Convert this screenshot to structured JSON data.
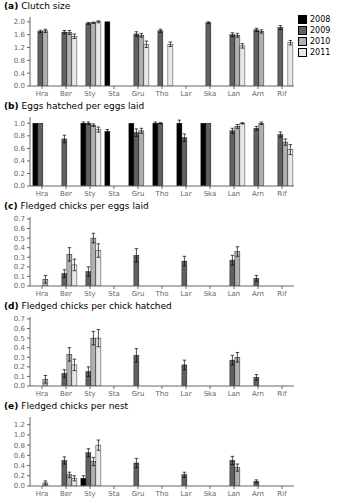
{
  "chart_data": [
    {
      "type": "bar",
      "title": "(a)",
      "ylabel": "Clutch size",
      "categories": [
        "Hra",
        "Ber",
        "Sty",
        "Sta",
        "Gru",
        "Tho",
        "Lar",
        "Ska",
        "Lan",
        "Arn",
        "Rif"
      ],
      "series": [
        {
          "name": "2008",
          "color": "#000000",
          "values": [
            null,
            null,
            null,
            2.0,
            null,
            null,
            null,
            null,
            null,
            null,
            null
          ],
          "errors": [
            null,
            null,
            null,
            null,
            null,
            null,
            null,
            null,
            null,
            null,
            null
          ]
        },
        {
          "name": "2009",
          "color": "#606060",
          "values": [
            1.7,
            1.68,
            1.95,
            null,
            1.62,
            1.72,
            null,
            1.97,
            1.6,
            1.75,
            1.82
          ],
          "errors": [
            0.04,
            0.05,
            0.03,
            null,
            0.07,
            0.05,
            null,
            0.03,
            0.06,
            0.05,
            0.06
          ]
        },
        {
          "name": "2010",
          "color": "#b0b0b0",
          "values": [
            1.72,
            1.67,
            1.97,
            null,
            1.58,
            null,
            null,
            null,
            1.58,
            1.7,
            null
          ],
          "errors": [
            0.05,
            0.06,
            0.02,
            null,
            0.06,
            null,
            null,
            null,
            0.06,
            0.05,
            null
          ]
        },
        {
          "name": "2011",
          "color": "#e8e8e8",
          "values": [
            null,
            1.55,
            2.0,
            null,
            1.3,
            1.3,
            null,
            null,
            1.25,
            null,
            1.35
          ],
          "errors": [
            null,
            0.07,
            0.03,
            null,
            0.1,
            0.07,
            null,
            null,
            0.07,
            null,
            0.07
          ]
        }
      ],
      "ylim": [
        0.0,
        2.15
      ],
      "yticks": [
        {
          "value": 0,
          "label": "0.0"
        },
        0.4,
        0.8,
        1.2,
        1.6,
        {
          "value": 2,
          "label": "2.0"
        }
      ],
      "legend": "upper right"
    },
    {
      "type": "bar",
      "title": "(b)",
      "ylabel": "Eggs hatched per eggs laid",
      "categories": [
        "Hra",
        "Ber",
        "Sty",
        "Sta",
        "Gru",
        "Tho",
        "Lar",
        "Ska",
        "Lan",
        "Arn",
        "Rif"
      ],
      "series": [
        {
          "name": "2008",
          "color": "#000000",
          "values": [
            1.0,
            null,
            1.0,
            0.87,
            1.0,
            1.0,
            1.0,
            1.0,
            null,
            null,
            null
          ],
          "errors": [
            null,
            null,
            0.02,
            0.03,
            null,
            0.02,
            0.05,
            null,
            null,
            null,
            null
          ]
        },
        {
          "name": "2009",
          "color": "#606060",
          "values": [
            1.0,
            0.75,
            1.0,
            null,
            0.85,
            1.0,
            0.77,
            1.0,
            0.88,
            0.92,
            0.82
          ],
          "errors": [
            null,
            0.06,
            0.02,
            null,
            0.06,
            0.01,
            0.06,
            null,
            0.04,
            0.03,
            0.04
          ]
        },
        {
          "name": "2010",
          "color": "#b0b0b0",
          "values": [
            null,
            null,
            0.97,
            null,
            0.88,
            null,
            null,
            null,
            0.95,
            1.0,
            0.7
          ],
          "errors": [
            null,
            null,
            0.02,
            null,
            0.04,
            null,
            null,
            null,
            0.03,
            0.02,
            0.05
          ]
        },
        {
          "name": "2011",
          "color": "#e8e8e8",
          "values": [
            null,
            null,
            0.9,
            null,
            null,
            null,
            null,
            null,
            1.0,
            null,
            0.58
          ],
          "errors": [
            null,
            null,
            0.04,
            null,
            null,
            null,
            null,
            null,
            0.01,
            null,
            0.08
          ]
        }
      ],
      "ylim": [
        0.0,
        1.1
      ],
      "yticks": [
        {
          "value": 0,
          "label": "0.0"
        },
        0.2,
        0.4,
        0.6,
        0.8,
        {
          "value": 1,
          "label": "1.0"
        }
      ]
    },
    {
      "type": "bar",
      "title": "(c)",
      "ylabel": "Fledged chicks per eggs laid",
      "categories": [
        "Hra",
        "Ber",
        "Sty",
        "Sta",
        "Gru",
        "Tho",
        "Lar",
        "Ska",
        "Lan",
        "Arn",
        "Rif"
      ],
      "series": [
        {
          "name": "2008",
          "color": "#000000",
          "values": [
            null,
            null,
            null,
            null,
            null,
            null,
            null,
            null,
            null,
            null,
            null
          ],
          "errors": [
            null,
            null,
            null,
            null,
            null,
            null,
            null,
            null,
            null,
            null,
            null
          ]
        },
        {
          "name": "2009",
          "color": "#606060",
          "values": [
            null,
            0.13,
            0.15,
            null,
            0.32,
            null,
            0.26,
            null,
            0.27,
            0.08,
            null
          ],
          "errors": [
            null,
            0.04,
            0.05,
            null,
            0.07,
            null,
            0.05,
            null,
            0.05,
            0.03,
            null
          ]
        },
        {
          "name": "2010",
          "color": "#b0b0b0",
          "values": [
            0.07,
            0.33,
            0.5,
            null,
            null,
            null,
            null,
            null,
            0.36,
            null,
            null
          ],
          "errors": [
            0.04,
            0.07,
            0.05,
            null,
            null,
            null,
            null,
            null,
            0.05,
            null,
            null
          ]
        },
        {
          "name": "2011",
          "color": "#e8e8e8",
          "values": [
            null,
            0.22,
            0.37,
            null,
            null,
            null,
            null,
            null,
            null,
            null,
            null
          ],
          "errors": [
            null,
            0.06,
            0.07,
            null,
            null,
            null,
            null,
            null,
            null,
            null,
            null
          ]
        }
      ],
      "ylim": [
        0.0,
        0.72
      ],
      "yticks": [
        {
          "value": 0,
          "label": "0.0"
        },
        0.1,
        0.2,
        0.3,
        0.4,
        0.5,
        0.6,
        0.7
      ]
    },
    {
      "type": "bar",
      "title": "(d)",
      "ylabel": "Fledged chicks per chick hatched",
      "categories": [
        "Hra",
        "Ber",
        "Sty",
        "Sta",
        "Gru",
        "Tho",
        "Lar",
        "Ska",
        "Lan",
        "Arn",
        "Rif"
      ],
      "series": [
        {
          "name": "2008",
          "color": "#000000",
          "values": [
            null,
            null,
            null,
            null,
            null,
            null,
            null,
            null,
            null,
            null,
            null
          ],
          "errors": [
            null,
            null,
            null,
            null,
            null,
            null,
            null,
            null,
            null,
            null,
            null
          ]
        },
        {
          "name": "2009",
          "color": "#606060",
          "values": [
            null,
            0.13,
            0.15,
            null,
            0.32,
            null,
            0.22,
            null,
            0.27,
            0.09,
            null
          ],
          "errors": [
            null,
            0.04,
            0.05,
            null,
            0.07,
            null,
            0.05,
            null,
            0.05,
            0.03,
            null
          ]
        },
        {
          "name": "2010",
          "color": "#b0b0b0",
          "values": [
            0.07,
            0.33,
            0.5,
            null,
            null,
            null,
            null,
            null,
            0.3,
            null,
            null
          ],
          "errors": [
            0.04,
            0.07,
            0.07,
            null,
            null,
            null,
            null,
            null,
            0.05,
            null,
            null
          ]
        },
        {
          "name": "2011",
          "color": "#e8e8e8",
          "values": [
            null,
            0.22,
            0.5,
            null,
            null,
            null,
            null,
            null,
            null,
            null,
            null
          ],
          "errors": [
            null,
            0.06,
            0.09,
            null,
            null,
            null,
            null,
            null,
            null,
            null,
            null
          ]
        }
      ],
      "ylim": [
        0.0,
        0.72
      ],
      "yticks": [
        {
          "value": 0,
          "label": "0.0"
        },
        0.1,
        0.2,
        0.3,
        0.4,
        0.5,
        0.6,
        0.7
      ]
    },
    {
      "type": "bar",
      "title": "(e)",
      "ylabel": "Fledged chicks per nest",
      "categories": [
        "Hra",
        "Ber",
        "Sty",
        "Sta",
        "Gru",
        "Tho",
        "Lar",
        "Ska",
        "Lan",
        "Arn",
        "Rif"
      ],
      "series": [
        {
          "name": "2008",
          "color": "#000000",
          "values": [
            null,
            null,
            0.15,
            null,
            null,
            null,
            null,
            null,
            null,
            null,
            null
          ],
          "errors": [
            null,
            null,
            0.05,
            null,
            null,
            null,
            null,
            null,
            null,
            null,
            null
          ]
        },
        {
          "name": "2009",
          "color": "#606060",
          "values": [
            null,
            0.5,
            0.65,
            null,
            0.45,
            null,
            0.22,
            null,
            0.5,
            0.09,
            null
          ],
          "errors": [
            null,
            0.07,
            0.08,
            null,
            0.09,
            null,
            0.05,
            null,
            0.08,
            0.03,
            null
          ]
        },
        {
          "name": "2010",
          "color": "#b0b0b0",
          "values": [
            0.06,
            0.22,
            0.48,
            null,
            null,
            null,
            null,
            null,
            0.36,
            null,
            null
          ],
          "errors": [
            0.04,
            0.05,
            0.08,
            null,
            null,
            null,
            null,
            null,
            0.07,
            null,
            null
          ]
        },
        {
          "name": "2011",
          "color": "#e8e8e8",
          "values": [
            null,
            0.15,
            0.8,
            null,
            null,
            null,
            null,
            null,
            null,
            null,
            null
          ],
          "errors": [
            null,
            0.05,
            0.1,
            null,
            null,
            null,
            null,
            null,
            null,
            null,
            null
          ]
        }
      ],
      "ylim": [
        0.0,
        1.35
      ],
      "yticks": [
        {
          "value": 0,
          "label": "0.0"
        },
        0.2,
        0.4,
        0.6,
        0.8,
        {
          "value": 1,
          "label": "1.0"
        },
        1.2
      ]
    }
  ]
}
